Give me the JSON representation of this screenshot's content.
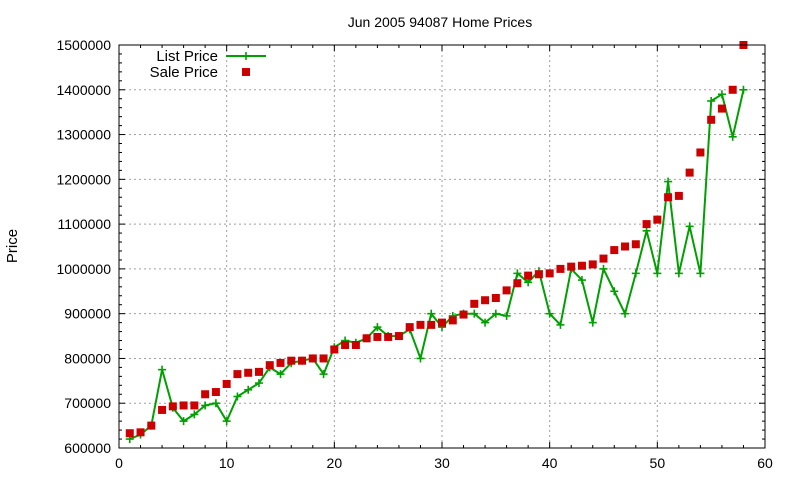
{
  "chart_data": {
    "type": "line",
    "title": "Jun 2005 94087 Home Prices",
    "xlabel": "",
    "ylabel": "Price",
    "xlim": [
      0,
      60
    ],
    "ylim": [
      600000,
      1500000
    ],
    "xticks": [
      0,
      10,
      20,
      30,
      40,
      50,
      60
    ],
    "yticks": [
      600000,
      700000,
      800000,
      900000,
      1000000,
      1100000,
      1200000,
      1300000,
      1400000,
      1500000
    ],
    "xtick_labels": [
      "0",
      "10",
      "20",
      "30",
      "40",
      "50",
      "60"
    ],
    "ytick_labels": [
      "600000",
      "700000",
      "800000",
      "900000",
      "1000000",
      "1100000",
      "1200000",
      "1300000",
      "1400000",
      "1500000"
    ],
    "grid": true,
    "legend_position": "top-left",
    "series": [
      {
        "name": "List Price",
        "style": "line-cross",
        "color": "#00a000",
        "x": [
          1,
          2,
          3,
          4,
          5,
          6,
          7,
          8,
          9,
          10,
          11,
          12,
          13,
          14,
          15,
          16,
          17,
          18,
          19,
          20,
          21,
          22,
          23,
          24,
          25,
          26,
          27,
          28,
          29,
          30,
          31,
          32,
          33,
          34,
          35,
          36,
          37,
          38,
          39,
          40,
          41,
          42,
          43,
          44,
          45,
          46,
          47,
          48,
          49,
          50,
          51,
          52,
          53,
          54,
          55,
          56,
          57,
          58
        ],
        "y": [
          620000,
          630000,
          650000,
          775000,
          690000,
          660000,
          675000,
          695000,
          700000,
          660000,
          715000,
          730000,
          745000,
          780000,
          765000,
          790000,
          795000,
          800000,
          765000,
          825000,
          840000,
          835000,
          845000,
          870000,
          850000,
          850000,
          865000,
          800000,
          900000,
          870000,
          895000,
          900000,
          900000,
          880000,
          900000,
          895000,
          990000,
          970000,
          995000,
          900000,
          875000,
          1000000,
          975000,
          880000,
          1000000,
          950000,
          900000,
          990000,
          1085000,
          990000,
          1195000,
          990000,
          1095000,
          990000,
          1375000,
          1390000,
          1295000,
          1400000
        ]
      },
      {
        "name": "Sale Price",
        "style": "square-marker",
        "color": "#cc0000",
        "x": [
          1,
          2,
          3,
          4,
          5,
          6,
          7,
          8,
          9,
          10,
          11,
          12,
          13,
          14,
          15,
          16,
          17,
          18,
          19,
          20,
          21,
          22,
          23,
          24,
          25,
          26,
          27,
          28,
          29,
          30,
          31,
          32,
          33,
          34,
          35,
          36,
          37,
          38,
          39,
          40,
          41,
          42,
          43,
          44,
          45,
          46,
          47,
          48,
          49,
          50,
          51,
          52,
          53,
          54,
          55,
          56,
          57,
          58
        ],
        "y": [
          633000,
          635000,
          650000,
          685000,
          693000,
          695000,
          695000,
          720000,
          725000,
          743000,
          765000,
          768000,
          770000,
          785000,
          790000,
          795000,
          795000,
          800000,
          800000,
          820000,
          830000,
          830000,
          845000,
          848000,
          848000,
          850000,
          870000,
          875000,
          875000,
          880000,
          885000,
          898000,
          922000,
          930000,
          935000,
          952000,
          968000,
          985000,
          988000,
          990000,
          1000000,
          1005000,
          1007000,
          1010000,
          1023000,
          1042000,
          1050000,
          1055000,
          1100000,
          1110000,
          1160000,
          1163000,
          1215000,
          1260000,
          1333000,
          1358000,
          1400000,
          1500000
        ]
      }
    ]
  }
}
